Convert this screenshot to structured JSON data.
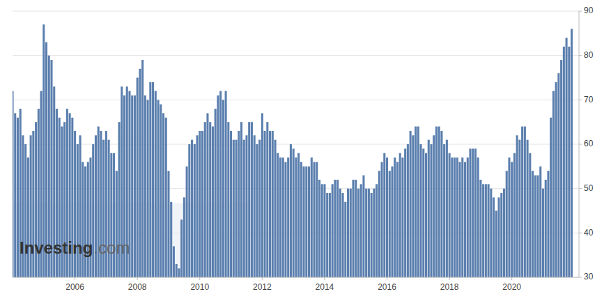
{
  "chart_data": {
    "type": "bar",
    "x": [
      2004,
      2004.0833333333333,
      2004.1666666666667,
      2004.25,
      2004.3333333333333,
      2004.4166666666667,
      2004.5,
      2004.5833333333333,
      2004.6666666666667,
      2004.75,
      2004.8333333333333,
      2004.9166666666667,
      2005,
      2005.0833333333333,
      2005.1666666666667,
      2005.25,
      2005.3333333333333,
      2005.4166666666667,
      2005.5,
      2005.5833333333333,
      2005.6666666666667,
      2005.75,
      2005.8333333333333,
      2005.9166666666667,
      2006,
      2006.0833333333333,
      2006.1666666666667,
      2006.25,
      2006.3333333333333,
      2006.4166666666667,
      2006.5,
      2006.5833333333333,
      2006.6666666666667,
      2006.75,
      2006.8333333333333,
      2006.9166666666667,
      2007,
      2007.0833333333333,
      2007.1666666666667,
      2007.25,
      2007.3333333333333,
      2007.4166666666667,
      2007.5,
      2007.5833333333333,
      2007.6666666666667,
      2007.75,
      2007.8333333333333,
      2007.9166666666667,
      2008,
      2008.0833333333333,
      2008.1666666666667,
      2008.25,
      2008.3333333333333,
      2008.4166666666667,
      2008.5,
      2008.5833333333333,
      2008.6666666666667,
      2008.75,
      2008.8333333333333,
      2008.9166666666667,
      2009,
      2009.0833333333333,
      2009.1666666666667,
      2009.25,
      2009.3333333333333,
      2009.4166666666667,
      2009.5,
      2009.5833333333333,
      2009.6666666666667,
      2009.75,
      2009.8333333333333,
      2009.9166666666667,
      2010,
      2010.0833333333333,
      2010.1666666666667,
      2010.25,
      2010.3333333333333,
      2010.4166666666667,
      2010.5,
      2010.5833333333333,
      2010.6666666666667,
      2010.75,
      2010.8333333333333,
      2010.9166666666667,
      2011,
      2011.0833333333333,
      2011.1666666666667,
      2011.25,
      2011.3333333333333,
      2011.4166666666667,
      2011.5,
      2011.5833333333333,
      2011.6666666666667,
      2011.75,
      2011.8333333333333,
      2011.9166666666667,
      2012,
      2012.0833333333333,
      2012.1666666666667,
      2012.25,
      2012.3333333333333,
      2012.4166666666667,
      2012.5,
      2012.5833333333333,
      2012.6666666666667,
      2012.75,
      2012.8333333333333,
      2012.9166666666667,
      2013,
      2013.0833333333333,
      2013.1666666666667,
      2013.25,
      2013.3333333333333,
      2013.4166666666667,
      2013.5,
      2013.5833333333333,
      2013.6666666666667,
      2013.75,
      2013.8333333333333,
      2013.9166666666667,
      2014,
      2014.0833333333333,
      2014.1666666666667,
      2014.25,
      2014.3333333333333,
      2014.4166666666667,
      2014.5,
      2014.5833333333333,
      2014.6666666666667,
      2014.75,
      2014.8333333333333,
      2014.9166666666667,
      2015,
      2015.0833333333333,
      2015.1666666666667,
      2015.25,
      2015.3333333333333,
      2015.4166666666667,
      2015.5,
      2015.5833333333333,
      2015.6666666666667,
      2015.75,
      2015.8333333333333,
      2015.9166666666667,
      2016,
      2016.0833333333333,
      2016.1666666666667,
      2016.25,
      2016.3333333333333,
      2016.4166666666667,
      2016.5,
      2016.5833333333333,
      2016.6666666666667,
      2016.75,
      2016.8333333333333,
      2016.9166666666667,
      2017,
      2017.0833333333333,
      2017.1666666666667,
      2017.25,
      2017.3333333333333,
      2017.4166666666667,
      2017.5,
      2017.5833333333333,
      2017.6666666666667,
      2017.75,
      2017.8333333333333,
      2017.9166666666667,
      2018,
      2018.0833333333333,
      2018.1666666666667,
      2018.25,
      2018.3333333333333,
      2018.4166666666667,
      2018.5,
      2018.5833333333333,
      2018.6666666666667,
      2018.75,
      2018.8333333333333,
      2018.9166666666667,
      2019,
      2019.0833333333333,
      2019.1666666666667,
      2019.25,
      2019.3333333333333,
      2019.4166666666667,
      2019.5,
      2019.5833333333333,
      2019.6666666666667,
      2019.75,
      2019.8333333333333,
      2019.9166666666667,
      2020,
      2020.0833333333333,
      2020.1666666666667,
      2020.25,
      2020.3333333333333,
      2020.4166666666667,
      2020.5,
      2020.5833333333333,
      2020.6666666666667,
      2020.75,
      2020.8333333333333,
      2020.9166666666667,
      2021,
      2021.0833333333333,
      2021.1666666666667,
      2021.25,
      2021.3333333333333,
      2021.4166666666667,
      2021.5,
      2021.5833333333333,
      2021.6666666666667,
      2021.75,
      2021.8333333333333,
      2021.9166666666667
    ],
    "values": [
      72,
      67,
      66,
      68,
      62,
      60,
      57,
      62,
      63,
      65,
      68,
      72,
      87,
      83,
      80,
      79,
      73,
      68,
      66,
      64,
      65,
      68,
      67,
      66,
      63,
      60,
      62,
      56,
      55,
      56,
      57,
      60,
      62,
      64,
      63,
      61,
      63,
      61,
      58,
      58,
      54,
      65,
      73,
      71,
      73,
      72,
      71,
      71,
      75,
      77,
      79,
      71,
      70,
      74,
      74,
      72,
      70,
      69,
      67,
      66,
      54,
      47,
      37,
      33,
      32,
      43,
      48,
      55,
      60,
      61,
      60,
      62,
      63,
      63,
      65,
      67,
      65,
      64,
      68,
      71,
      72,
      70,
      72,
      65,
      63,
      61,
      61,
      63,
      65,
      61,
      62,
      65,
      65,
      62,
      60,
      61,
      67,
      63,
      65,
      63,
      63,
      61,
      58,
      57,
      57,
      56,
      57,
      60,
      59,
      57,
      58,
      56,
      55,
      55,
      55,
      57,
      56,
      56,
      52,
      51,
      51,
      49,
      49,
      51,
      52,
      52,
      50,
      49,
      47,
      50,
      50,
      52,
      52,
      50,
      51,
      53,
      50,
      50,
      49,
      50,
      51,
      54,
      56,
      58,
      57,
      54,
      55,
      57,
      56,
      58,
      57,
      59,
      60,
      63,
      62,
      64,
      64,
      60,
      59,
      58,
      61,
      60,
      62,
      64,
      64,
      63,
      60,
      61,
      58,
      57,
      57,
      57,
      56,
      57,
      56,
      57,
      59,
      59,
      59,
      57,
      52,
      51,
      51,
      51,
      50,
      48,
      45,
      48,
      49,
      50,
      54,
      57,
      56,
      58,
      62,
      61,
      64,
      64,
      61,
      58,
      54,
      53,
      53,
      55,
      50,
      52,
      54,
      66,
      72,
      74,
      76,
      79,
      82,
      84,
      82,
      86
    ],
    "color": "#5b7fae",
    "xlim": [
      2004.0,
      2022.15
    ],
    "xticks": [
      2006,
      2008,
      2010,
      2012,
      2014,
      2016,
      2018,
      2020
    ],
    "ylim": [
      30,
      90
    ],
    "yticks": [
      30,
      40,
      50,
      60,
      70,
      80,
      90
    ],
    "grid": true,
    "annotations": [
      "Investing",
      ".com"
    ]
  }
}
